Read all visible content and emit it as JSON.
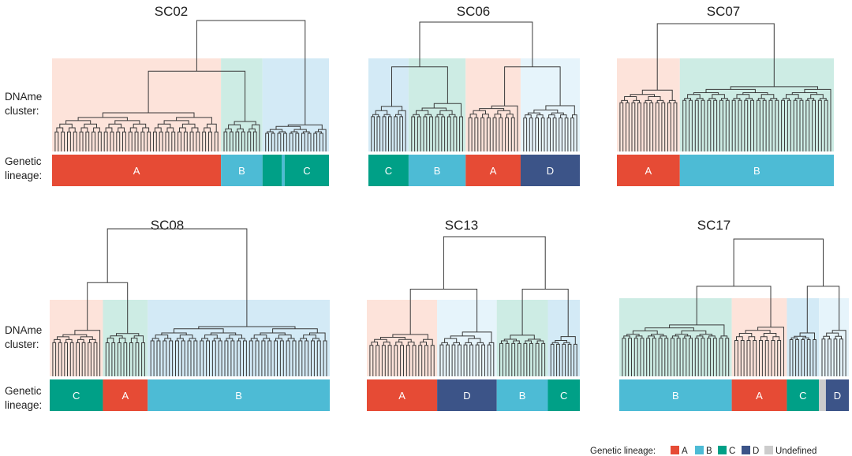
{
  "colors": {
    "A": "#e64b35",
    "B": "#4dbbd5",
    "C": "#00a087",
    "D": "#3c5488",
    "Undefined": "#cccccc",
    "tint_A": "#fde3da",
    "tint_B": "#d3eaf6",
    "tint_C": "#cdece4",
    "tint_D": "#e6f4fb",
    "tree": "#3a3a3a"
  },
  "row_labels": {
    "dname_line1": "DNAme",
    "dname_line2": "cluster:",
    "genetic_line1": "Genetic",
    "genetic_line2": "lineage:"
  },
  "legend": {
    "title": "Genetic lineage:",
    "items": [
      {
        "key": "A",
        "label": "A"
      },
      {
        "key": "B",
        "label": "B"
      },
      {
        "key": "C",
        "label": "C"
      },
      {
        "key": "D",
        "label": "D"
      },
      {
        "key": "Undefined",
        "label": "Undefined"
      }
    ]
  },
  "chart_data": [
    {
      "type": "dendrogram",
      "title": "SC02",
      "dname_clusters": [
        {
          "tint": "A",
          "weight": 0.61
        },
        {
          "tint": "C",
          "weight": 0.15
        },
        {
          "tint": "B",
          "weight": 0.24
        }
      ],
      "genetic_lineage": [
        {
          "lineage": "A",
          "label": "A",
          "weight": 0.61
        },
        {
          "lineage": "B",
          "label": "B",
          "weight": 0.15
        },
        {
          "lineage": "C",
          "label": "",
          "weight": 0.07
        },
        {
          "lineage": "B",
          "label": "",
          "weight": 0.01
        },
        {
          "lineage": "C",
          "label": "C",
          "weight": 0.16
        }
      ]
    },
    {
      "type": "dendrogram",
      "title": "SC06",
      "dname_clusters": [
        {
          "tint": "B",
          "weight": 0.19
        },
        {
          "tint": "C",
          "weight": 0.27
        },
        {
          "tint": "A",
          "weight": 0.26
        },
        {
          "tint": "D",
          "weight": 0.28
        }
      ],
      "genetic_lineage": [
        {
          "lineage": "C",
          "label": "C",
          "weight": 0.19
        },
        {
          "lineage": "B",
          "label": "B",
          "weight": 0.27
        },
        {
          "lineage": "A",
          "label": "A",
          "weight": 0.26
        },
        {
          "lineage": "D",
          "label": "D",
          "weight": 0.28
        }
      ]
    },
    {
      "type": "dendrogram",
      "title": "SC07",
      "dname_clusters": [
        {
          "tint": "A",
          "weight": 0.29
        },
        {
          "tint": "C",
          "weight": 0.71
        }
      ],
      "genetic_lineage": [
        {
          "lineage": "A",
          "label": "A",
          "weight": 0.29
        },
        {
          "lineage": "B",
          "label": "B",
          "weight": 0.71
        }
      ]
    },
    {
      "type": "dendrogram",
      "title": "SC08",
      "dname_clusters": [
        {
          "tint": "A",
          "weight": 0.19
        },
        {
          "tint": "C",
          "weight": 0.16
        },
        {
          "tint": "B",
          "weight": 0.65
        }
      ],
      "genetic_lineage": [
        {
          "lineage": "C",
          "label": "C",
          "weight": 0.19
        },
        {
          "lineage": "A",
          "label": "A",
          "weight": 0.16
        },
        {
          "lineage": "B",
          "label": "B",
          "weight": 0.65
        }
      ]
    },
    {
      "type": "dendrogram",
      "title": "SC13",
      "dname_clusters": [
        {
          "tint": "A",
          "weight": 0.33
        },
        {
          "tint": "D",
          "weight": 0.28
        },
        {
          "tint": "C",
          "weight": 0.24
        },
        {
          "tint": "B",
          "weight": 0.15
        }
      ],
      "genetic_lineage": [
        {
          "lineage": "A",
          "label": "A",
          "weight": 0.33
        },
        {
          "lineage": "D",
          "label": "D",
          "weight": 0.28
        },
        {
          "lineage": "B",
          "label": "B",
          "weight": 0.24
        },
        {
          "lineage": "C",
          "label": "C",
          "weight": 0.15
        }
      ]
    },
    {
      "type": "dendrogram",
      "title": "SC17",
      "dname_clusters": [
        {
          "tint": "C",
          "weight": 0.49
        },
        {
          "tint": "A",
          "weight": 0.24
        },
        {
          "tint": "B",
          "weight": 0.14
        },
        {
          "tint": "D",
          "weight": 0.13
        }
      ],
      "genetic_lineage": [
        {
          "lineage": "B",
          "label": "B",
          "weight": 0.49
        },
        {
          "lineage": "A",
          "label": "A",
          "weight": 0.24
        },
        {
          "lineage": "C",
          "label": "C",
          "weight": 0.14
        },
        {
          "lineage": "Undefined",
          "label": "",
          "weight": 0.03
        },
        {
          "lineage": "D",
          "label": "D",
          "weight": 0.1
        }
      ]
    }
  ]
}
